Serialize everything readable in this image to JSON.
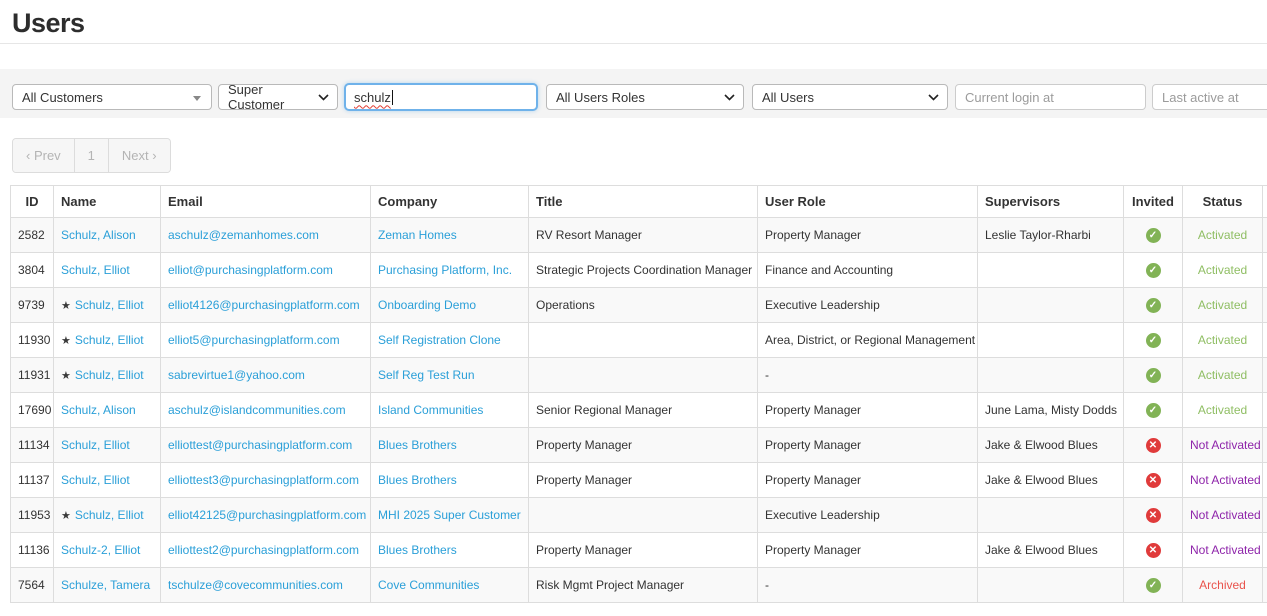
{
  "page": {
    "title": "Users"
  },
  "filters": {
    "customer": {
      "value": "All Customers"
    },
    "customer_type": {
      "value": "Super Customer"
    },
    "search": {
      "value": "schulz"
    },
    "user_role": {
      "value": "All Users Roles"
    },
    "user_scope": {
      "value": "All Users"
    },
    "current_login": {
      "placeholder": "Current login at"
    },
    "last_active": {
      "placeholder": "Last active at"
    }
  },
  "pagination": {
    "prev": "‹ Prev",
    "page": "1",
    "next": "Next ›"
  },
  "table": {
    "headers": [
      "ID",
      "Name",
      "Email",
      "Company",
      "Title",
      "User Role",
      "Supervisors",
      "Invited",
      "Status"
    ],
    "rows": [
      {
        "id": "2582",
        "starred": false,
        "name": "Schulz, Alison",
        "email": "aschulz@zemanhomes.com",
        "company": "Zeman Homes",
        "title": "RV Resort Manager",
        "role": "Property Manager",
        "supervisors": "Leslie Taylor-Rharbi",
        "invited": true,
        "status": "Activated"
      },
      {
        "id": "3804",
        "starred": false,
        "name": "Schulz, Elliot",
        "email": "elliot@purchasingplatform.com",
        "company": "Purchasing Platform, Inc.",
        "title": "Strategic Projects Coordination Manager",
        "role": "Finance and Accounting",
        "supervisors": "",
        "invited": true,
        "status": "Activated"
      },
      {
        "id": "9739",
        "starred": true,
        "name": "Schulz, Elliot",
        "email": "elliot4126@purchasingplatform.com",
        "company": "Onboarding Demo",
        "title": "Operations",
        "role": "Executive Leadership",
        "supervisors": "",
        "invited": true,
        "status": "Activated"
      },
      {
        "id": "11930",
        "starred": true,
        "name": "Schulz, Elliot",
        "email": "elliot5@purchasingplatform.com",
        "company": "Self Registration Clone",
        "title": "",
        "role": "Area, District, or Regional Management",
        "supervisors": "",
        "invited": true,
        "status": "Activated"
      },
      {
        "id": "11931",
        "starred": true,
        "name": "Schulz, Elliot",
        "email": "sabrevirtue1@yahoo.com",
        "company": "Self Reg Test Run",
        "title": "",
        "role": "-",
        "supervisors": "",
        "invited": true,
        "status": "Activated"
      },
      {
        "id": "17690",
        "starred": false,
        "name": "Schulz, Alison",
        "email": "aschulz@islandcommunities.com",
        "company": "Island Communities",
        "title": "Senior Regional Manager",
        "role": "Property Manager",
        "supervisors": "June Lama, Misty Dodds",
        "invited": true,
        "status": "Activated"
      },
      {
        "id": "11134",
        "starred": false,
        "name": "Schulz, Elliot",
        "email": "elliottest@purchasingplatform.com",
        "company": "Blues Brothers",
        "title": "Property Manager",
        "role": "Property Manager",
        "supervisors": "Jake & Elwood Blues",
        "invited": false,
        "status": "Not Activated"
      },
      {
        "id": "11137",
        "starred": false,
        "name": "Schulz, Elliot",
        "email": "elliottest3@purchasingplatform.com",
        "company": "Blues Brothers",
        "title": "Property Manager",
        "role": "Property Manager",
        "supervisors": "Jake & Elwood Blues",
        "invited": false,
        "status": "Not Activated"
      },
      {
        "id": "11953",
        "starred": true,
        "name": "Schulz, Elliot",
        "email": "elliot42125@purchasingplatform.com",
        "company": "MHI 2025 Super Customer",
        "title": "",
        "role": "Executive Leadership",
        "supervisors": "",
        "invited": false,
        "status": "Not Activated"
      },
      {
        "id": "11136",
        "starred": false,
        "name": "Schulz-2, Elliot",
        "email": "elliottest2@purchasingplatform.com",
        "company": "Blues Brothers",
        "title": "Property Manager",
        "role": "Property Manager",
        "supervisors": "Jake & Elwood Blues",
        "invited": false,
        "status": "Not Activated"
      },
      {
        "id": "7564",
        "starred": false,
        "name": "Schulze, Tamera",
        "email": "tschulze@covecommunities.com",
        "company": "Cove Communities",
        "title": "Risk Mgmt Project Manager",
        "role": "-",
        "supervisors": "",
        "invited": true,
        "status": "Archived"
      }
    ]
  },
  "icons": {
    "invited_yes": "check-circle",
    "invited_no": "x-circle",
    "starred": "star",
    "check_glyph": "✓",
    "x_glyph": "✕",
    "star_glyph": "★"
  },
  "colors": {
    "link-color": "#2a9fd8",
    "icon-green": "#82b356",
    "icon-red": "#e03b3b",
    "status-activated": "#8fbe63",
    "status-not-activated": "#8e24aa",
    "status-archived": "#e9534c"
  }
}
